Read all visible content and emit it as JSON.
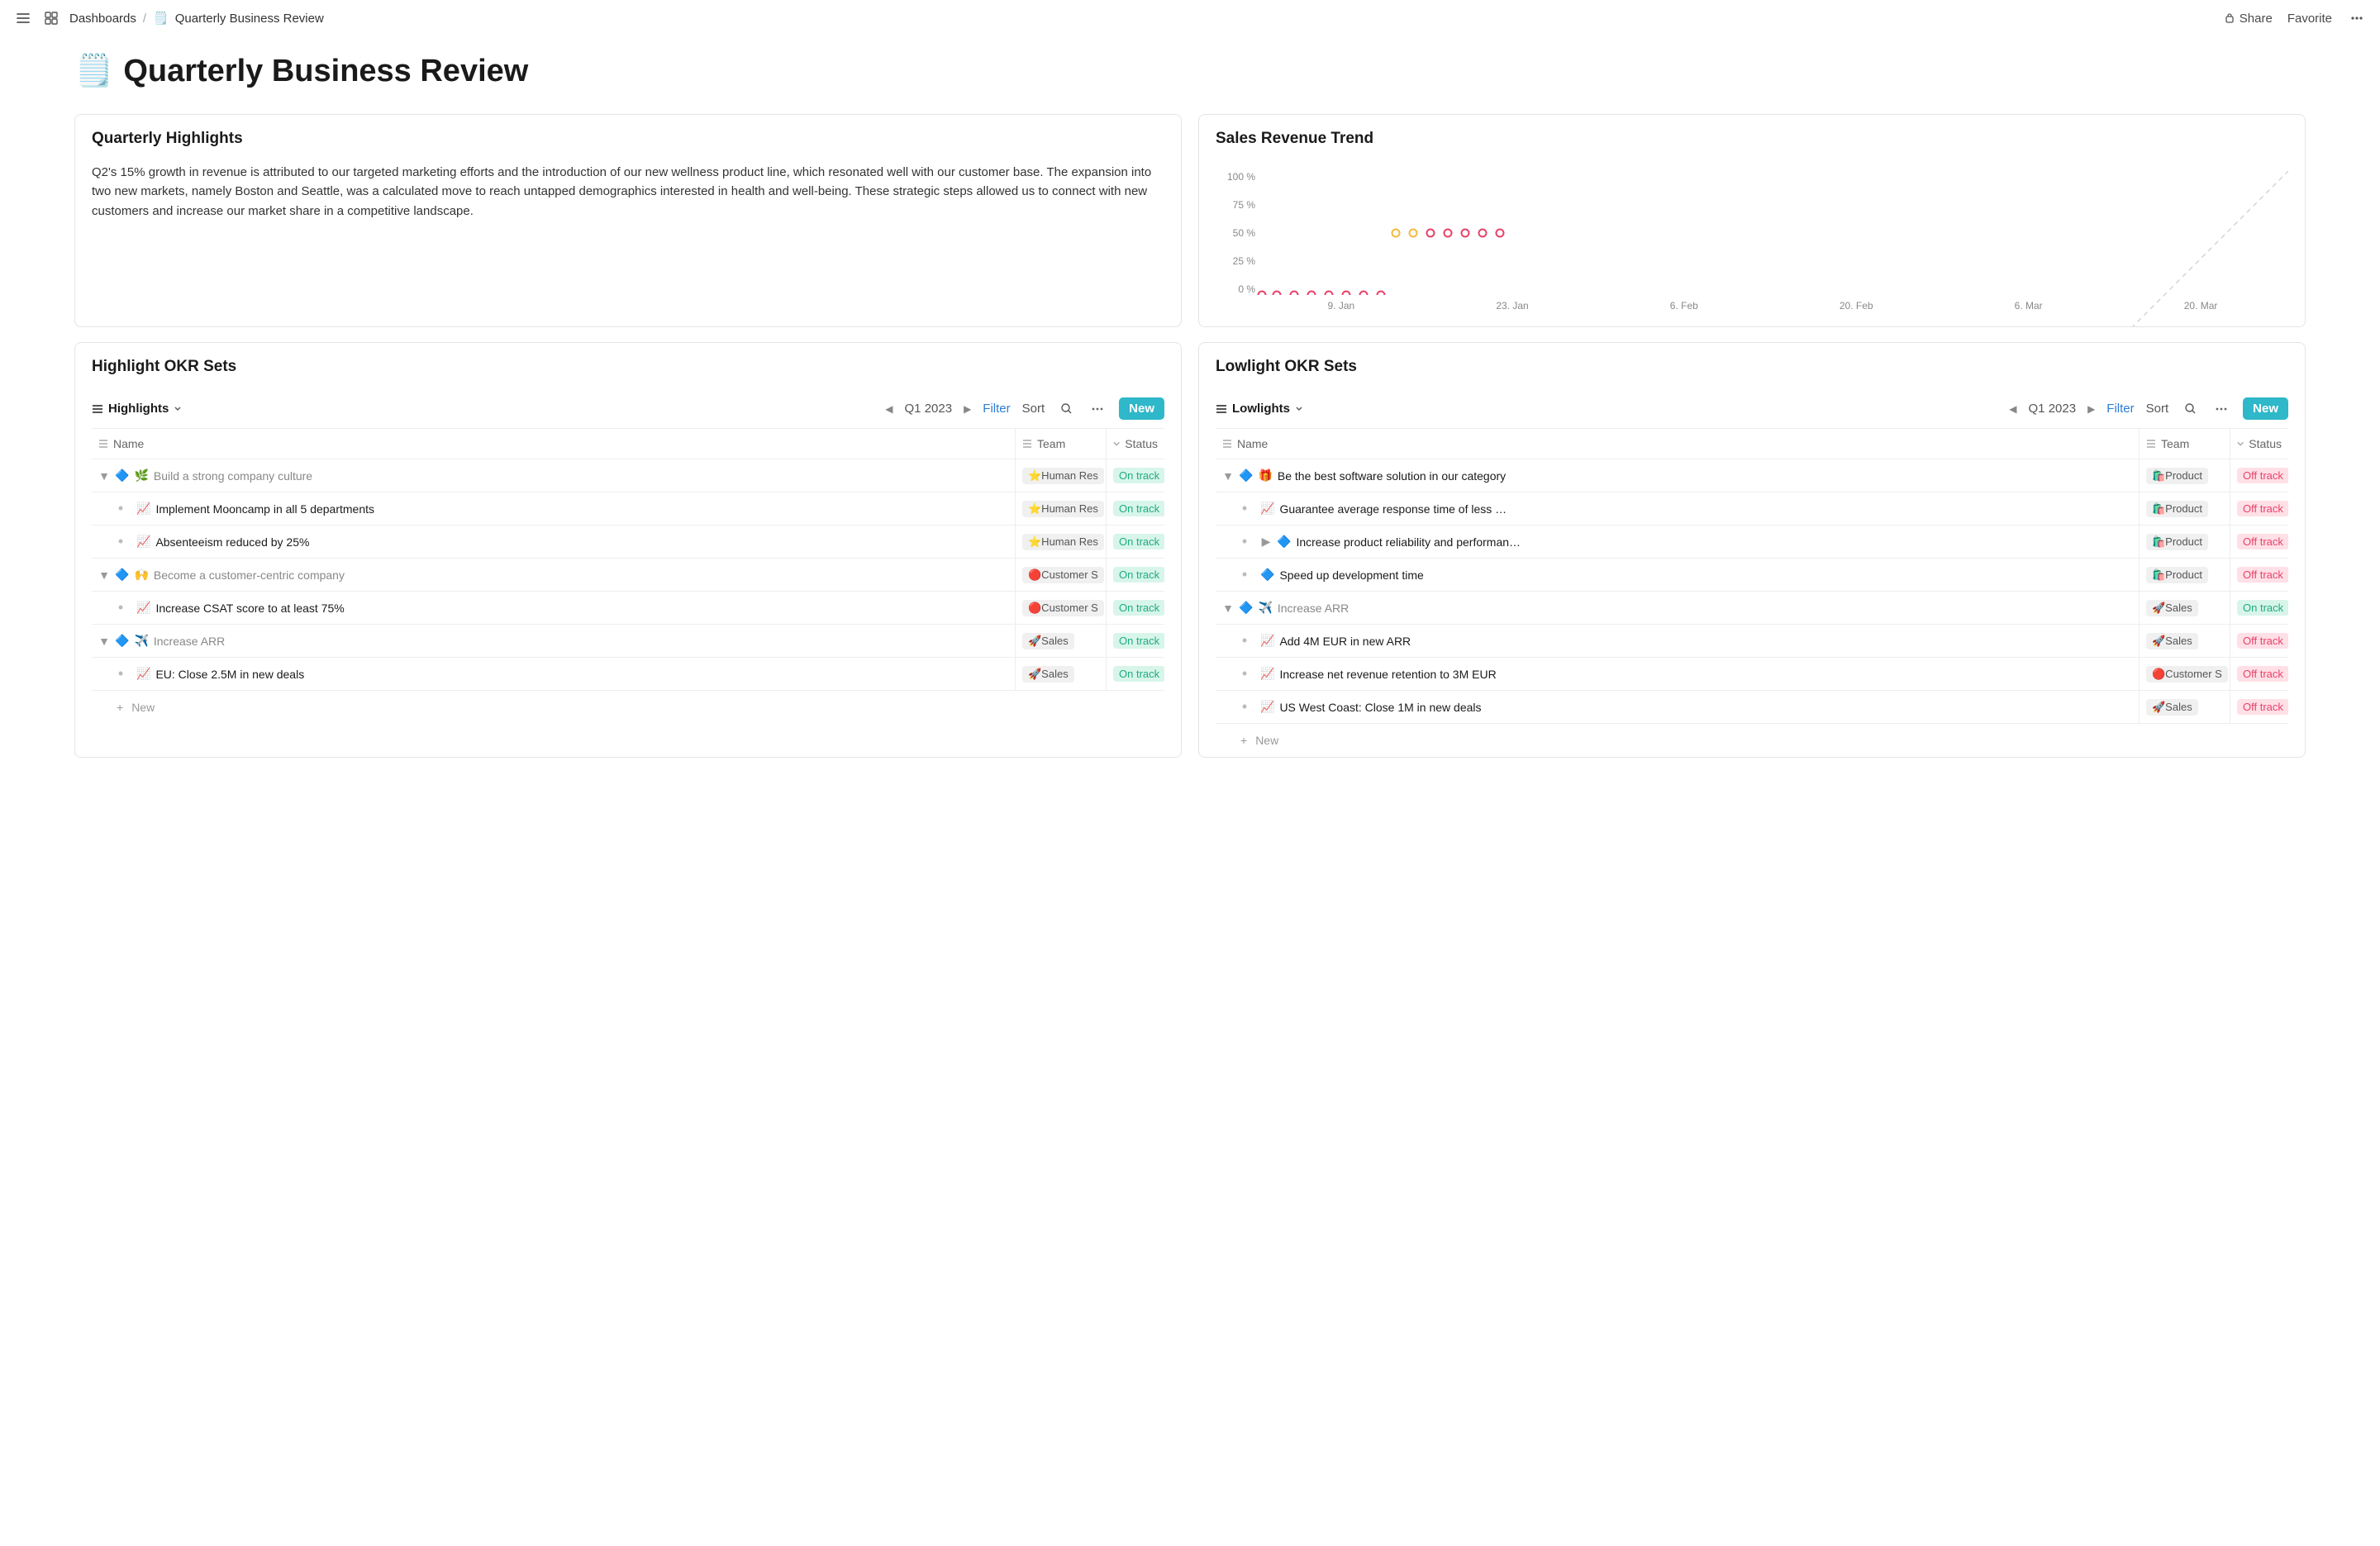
{
  "topbar": {
    "breadcrumb_root": "Dashboards",
    "breadcrumb_icon": "🗒️",
    "breadcrumb_page": "Quarterly Business Review",
    "share": "Share",
    "favorite": "Favorite"
  },
  "page": {
    "icon": "🗒️",
    "title": "Quarterly Business Review"
  },
  "highlights_card": {
    "title": "Quarterly Highlights",
    "body": "Q2's 15% growth in revenue is attributed to our targeted marketing efforts and the introduction of our new wellness product line, which resonated well with our customer base. The expansion into two new markets, namely Boston and Seattle, was a calculated move to reach untapped demographics interested in health and well-being. These strategic steps allowed us to connect with new customers and increase our market share in a competitive landscape."
  },
  "chart_card": {
    "title": "Sales Revenue Trend",
    "type": "line-area",
    "y_ticks": [
      "100 %",
      "75 %",
      "50 %",
      "25 %",
      "0 %"
    ],
    "x_ticks": [
      "9. Jan",
      "23. Jan",
      "6. Feb",
      "20. Feb",
      "6. Mar",
      "20. Mar"
    ],
    "ylim": [
      0,
      100
    ],
    "target_line": {
      "start": [
        0,
        0
      ],
      "end": [
        100,
        100
      ],
      "color": "#cccccc",
      "dash": "6,5"
    },
    "series": {
      "color_line": "#2cc6a7",
      "color_fill": "#b6e9dc",
      "fill_opacity": 0.55,
      "line_width": 2.2,
      "dash": "7,5",
      "points_x_pct": [
        2,
        8,
        15,
        22,
        29,
        36,
        43,
        50,
        56,
        63,
        70,
        77,
        84,
        91,
        98
      ],
      "points_y_val": [
        0,
        0,
        0,
        0,
        0,
        0,
        0,
        0,
        50,
        50,
        50,
        50,
        50,
        50,
        50
      ],
      "marker_stroke_colors": [
        "#e8416a",
        "#e8416a",
        "#e8416a",
        "#e8416a",
        "#e8416a",
        "#e8416a",
        "#e8416a",
        "#e8416a",
        "#f4b940",
        "#f4b940",
        "#e8416a",
        "#e8416a",
        "#e8416a",
        "#e8416a",
        "#e8416a"
      ],
      "marker_fill": "#ffffff",
      "marker_r": 4.5
    },
    "background_color": "#ffffff"
  },
  "columns": {
    "name": "Name",
    "team": "Team",
    "status": "Status"
  },
  "highlight_okr": {
    "title": "Highlight OKR Sets",
    "view_label": "Highlights",
    "period": "Q1 2023",
    "filter": "Filter",
    "sort": "Sort",
    "new": "New",
    "new_row": "New",
    "rows": [
      {
        "kind": "parent",
        "icon": "🔷",
        "emoji": "🌿",
        "label": "Build a strong company culture",
        "team": "⭐Human Res",
        "status": "On track"
      },
      {
        "kind": "child",
        "icon": "📈",
        "label": "Implement Mooncamp in all 5 departments",
        "team": "⭐Human Res",
        "status": "On track"
      },
      {
        "kind": "child",
        "icon": "📈",
        "label": "Absenteeism reduced by 25%",
        "team": "⭐Human Res",
        "status": "On track"
      },
      {
        "kind": "parent",
        "icon": "🔷",
        "emoji": "🙌",
        "label": "Become a customer-centric company",
        "team": "🔴Customer S",
        "status": "On track"
      },
      {
        "kind": "child",
        "icon": "📈",
        "label": "Increase CSAT score to at least 75%",
        "team": "🔴Customer S",
        "status": "On track"
      },
      {
        "kind": "parent",
        "icon": "🔷",
        "emoji": "✈️",
        "label": "Increase ARR",
        "team": "🚀Sales",
        "status": "On track"
      },
      {
        "kind": "child",
        "icon": "📈",
        "label": "EU: Close 2.5M in new deals",
        "team": "🚀Sales",
        "status": "On track"
      }
    ]
  },
  "lowlight_okr": {
    "title": "Lowlight OKR Sets",
    "view_label": "Lowlights",
    "period": "Q1 2023",
    "filter": "Filter",
    "sort": "Sort",
    "new": "New",
    "new_row": "New",
    "rows": [
      {
        "kind": "parent",
        "icon": "🔷",
        "emoji": "🎁",
        "label": "Be the best software solution in our category",
        "team": "🛍️Product",
        "status": "Off track",
        "dark": true
      },
      {
        "kind": "child",
        "icon": "📈",
        "label": "Guarantee average response time of less …",
        "team": "🛍️Product",
        "status": "Off track"
      },
      {
        "kind": "childarrow",
        "icon": "🔷",
        "label": "Increase product reliability and performan…",
        "team": "🛍️Product",
        "status": "Off track"
      },
      {
        "kind": "child",
        "icon": "🔷",
        "label": "Speed up development time",
        "team": "🛍️Product",
        "status": "Off track"
      },
      {
        "kind": "parent",
        "icon": "🔷",
        "emoji": "✈️",
        "label": "Increase ARR",
        "team": "🚀Sales",
        "status": "On track"
      },
      {
        "kind": "child",
        "icon": "📈",
        "label": "Add 4M EUR in new ARR",
        "team": "🚀Sales",
        "status": "Off track"
      },
      {
        "kind": "child",
        "icon": "📈",
        "label": "Increase net revenue retention to 3M EUR",
        "team": "🔴Customer S",
        "status": "Off track"
      },
      {
        "kind": "child",
        "icon": "📈",
        "label": "US West Coast: Close 1M in new deals",
        "team": "🚀Sales",
        "status": "Off track"
      }
    ]
  }
}
